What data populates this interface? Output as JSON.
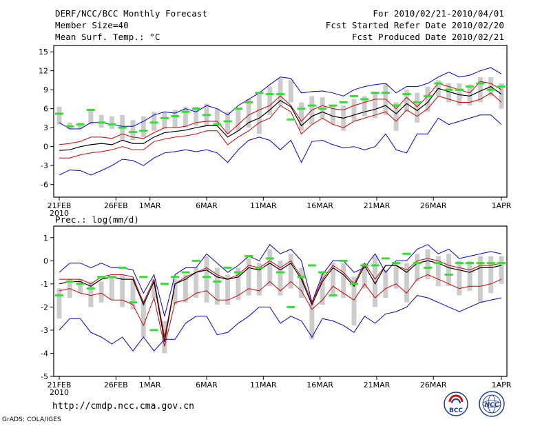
{
  "header": {
    "title": "DERF/NCC/BCC Monthly Forecast",
    "member_size": "Member Size=40",
    "variable": "Mean Surf. Temp.: °C",
    "period": "For 2010/02/21-2010/04/01",
    "started": "Fcst Started Refer Date 2010/02/20",
    "produced": "Fcst Produced Date 2010/02/21"
  },
  "footer": {
    "url": "http://cmdp.ncc.cma.gov.cn",
    "credit": "GrADS: COLA/IGES",
    "logo1_text": "BCC",
    "logo2_text": "NCC"
  },
  "colors": {
    "mean": "#000000",
    "spread": "#cc0000",
    "extreme": "#0000cc",
    "box": "#cccccc",
    "median": "#33dd33"
  },
  "chart_data": [
    {
      "type": "line",
      "title": "Mean Surf. Temp.: °C",
      "x_days": 40,
      "xticks": [
        {
          "day": 1,
          "label": "21FEB"
        },
        {
          "day": 6,
          "label": "26FEB"
        },
        {
          "day": 9,
          "label": "1MAR"
        },
        {
          "day": 14,
          "label": "6MAR"
        },
        {
          "day": 19,
          "label": "11MAR"
        },
        {
          "day": 24,
          "label": "16MAR"
        },
        {
          "day": 29,
          "label": "21MAR"
        },
        {
          "day": 34,
          "label": "26MAR"
        },
        {
          "day": 40,
          "label": "1APR"
        }
      ],
      "year_label": "2010",
      "ylim": [
        -8,
        16
      ],
      "yticks": [
        -6,
        -3,
        0,
        3,
        6,
        9,
        12,
        15
      ],
      "series": [
        {
          "name": "max",
          "values": [
            3.8,
            2.8,
            2.8,
            3.8,
            3.8,
            3.5,
            3.2,
            3.2,
            4.0,
            5.0,
            5.5,
            5.3,
            6.0,
            5.5,
            6.5,
            6.0,
            5.0,
            6.5,
            7.5,
            8.5,
            9.8,
            11.0,
            10.8,
            8.5,
            8.7,
            8.8,
            8.5,
            8.0,
            9.0,
            9.5,
            9.8,
            10.0,
            8.5,
            9.5,
            9.5,
            10.0,
            11.0,
            11.8,
            11.0,
            11.3,
            12.0,
            12.5,
            11.5
          ]
        },
        {
          "name": "upper",
          "values": [
            0.3,
            0.5,
            0.8,
            1.5,
            1.5,
            1.3,
            2.0,
            1.5,
            1.3,
            2.2,
            3.0,
            3.0,
            3.2,
            3.8,
            4.0,
            4.0,
            2.0,
            3.5,
            5.0,
            5.8,
            6.5,
            8.0,
            6.5,
            4.0,
            5.8,
            6.5,
            6.0,
            5.8,
            6.5,
            7.0,
            7.5,
            7.5,
            6.0,
            7.8,
            6.3,
            8.0,
            10.0,
            9.5,
            9.0,
            8.5,
            10.3,
            10.0,
            9.0
          ]
        },
        {
          "name": "mean",
          "values": [
            -0.6,
            -0.5,
            0.0,
            0.3,
            0.5,
            0.3,
            1.0,
            0.5,
            0.5,
            1.5,
            2.2,
            2.4,
            2.6,
            3.0,
            3.3,
            3.3,
            1.5,
            2.5,
            3.8,
            4.5,
            5.8,
            7.3,
            6.3,
            3.3,
            4.8,
            5.5,
            4.8,
            4.5,
            5.0,
            5.5,
            5.9,
            6.5,
            5.2,
            6.8,
            5.7,
            7.0,
            9.2,
            8.7,
            8.2,
            8.0,
            8.8,
            9.5,
            8.3
          ]
        },
        {
          "name": "lower",
          "values": [
            -1.8,
            -1.8,
            -1.3,
            -1.0,
            -0.8,
            -0.5,
            0.0,
            -0.5,
            -0.5,
            0.8,
            1.2,
            1.5,
            1.7,
            2.0,
            2.5,
            2.5,
            0.3,
            1.5,
            2.5,
            3.8,
            4.5,
            6.5,
            5.5,
            2.0,
            3.5,
            4.5,
            3.5,
            3.0,
            4.0,
            4.5,
            5.0,
            5.5,
            4.0,
            5.8,
            4.8,
            6.0,
            8.0,
            7.5,
            7.0,
            7.0,
            7.5,
            8.5,
            7.0
          ]
        },
        {
          "name": "min",
          "values": [
            -4.5,
            -3.7,
            -3.8,
            -4.5,
            -3.8,
            -3.0,
            -2.0,
            -2.2,
            -3.0,
            -1.8,
            -1.0,
            -0.8,
            -0.5,
            -0.8,
            -0.5,
            -1.0,
            -2.5,
            -0.5,
            1.0,
            1.5,
            1.0,
            -0.5,
            1.0,
            -2.5,
            0.8,
            1.0,
            0.3,
            -0.2,
            0.0,
            -0.5,
            0.0,
            2.0,
            -0.5,
            -1.0,
            2.0,
            2.0,
            4.5,
            3.5,
            4.0,
            4.5,
            5.0,
            5.0,
            3.5
          ]
        },
        {
          "name": "box_high",
          "values": [
            6.3,
            3.8,
            3.8,
            6.0,
            5.0,
            4.8,
            5.0,
            4.2,
            4.8,
            5.5,
            5.5,
            5.8,
            6.3,
            6.3,
            6.8,
            6.0,
            5.5,
            6.0,
            7.5,
            8.5,
            9.5,
            10.8,
            10.5,
            7.0,
            8.0,
            7.8,
            6.5,
            6.5,
            7.5,
            8.0,
            8.5,
            10.0,
            7.0,
            9.0,
            8.5,
            9.5,
            10.5,
            10.0,
            10.0,
            9.8,
            11.0,
            11.0,
            10.0
          ]
        },
        {
          "name": "box_low",
          "values": [
            3.5,
            2.8,
            2.8,
            3.5,
            3.0,
            2.8,
            1.0,
            1.0,
            1.5,
            2.5,
            2.8,
            3.0,
            3.0,
            3.3,
            3.3,
            3.3,
            2.0,
            2.5,
            3.0,
            2.0,
            5.0,
            6.5,
            7.0,
            2.5,
            3.5,
            4.5,
            3.5,
            2.5,
            4.0,
            4.8,
            4.5,
            5.0,
            2.5,
            5.5,
            3.8,
            5.5,
            8.0,
            7.0,
            6.5,
            6.5,
            7.0,
            8.0,
            6.0
          ]
        },
        {
          "name": "median",
          "values": [
            5.2,
            3.2,
            3.5,
            5.8,
            3.8,
            3.5,
            3.0,
            2.3,
            2.5,
            3.8,
            4.5,
            4.8,
            5.5,
            6.0,
            5.0,
            3.5,
            4.0,
            6.0,
            7.0,
            8.5,
            8.3,
            8.3,
            4.3,
            6.0,
            6.5,
            6.0,
            6.5,
            7.0,
            8.0,
            7.5,
            8.5,
            8.5,
            6.5,
            8.3,
            7.0,
            8.0,
            10.0,
            9.0,
            9.0,
            9.5,
            10.0,
            9.0,
            9.5
          ]
        }
      ]
    },
    {
      "type": "line",
      "title": "Prec.: log(mm/d)",
      "x_days": 40,
      "xticks": [
        {
          "day": 1,
          "label": "21FEB"
        },
        {
          "day": 6,
          "label": "26FEB"
        },
        {
          "day": 9,
          "label": "1MAR"
        },
        {
          "day": 14,
          "label": "6MAR"
        },
        {
          "day": 19,
          "label": "11MAR"
        },
        {
          "day": 24,
          "label": "16MAR"
        },
        {
          "day": 29,
          "label": "21MAR"
        },
        {
          "day": 34,
          "label": "26MAR"
        },
        {
          "day": 40,
          "label": "1APR"
        }
      ],
      "year_label": "2010",
      "ylim": [
        -5,
        1.5
      ],
      "yticks": [
        -5,
        -4,
        -3,
        -2,
        -1,
        0,
        1
      ],
      "series": [
        {
          "name": "max",
          "values": [
            -0.5,
            -0.1,
            -0.1,
            -0.3,
            -0.1,
            -0.3,
            -0.3,
            -0.4,
            -1.4,
            -0.6,
            -2.4,
            -0.6,
            -0.3,
            -0.3,
            0.3,
            -0.1,
            -0.5,
            -0.2,
            0.2,
            0.0,
            0.7,
            0.3,
            0.5,
            0.0,
            -1.8,
            -0.6,
            0.0,
            0.0,
            -0.5,
            -0.3,
            0.3,
            -0.5,
            0.0,
            0.0,
            0.5,
            0.7,
            0.3,
            0.5,
            0.1,
            0.2,
            0.3,
            0.4,
            0.3
          ]
        },
        {
          "name": "upper",
          "values": [
            -0.8,
            -0.8,
            -0.8,
            -1.0,
            -0.7,
            -0.6,
            -0.6,
            -0.7,
            -1.8,
            -0.8,
            -3.3,
            -1.0,
            -0.7,
            -0.5,
            -0.3,
            -0.6,
            -0.8,
            -0.6,
            -0.2,
            -0.3,
            0.0,
            -0.3,
            0.0,
            -0.7,
            -1.8,
            -0.8,
            -0.2,
            -0.5,
            -1.0,
            -0.1,
            -0.8,
            -0.2,
            -0.2,
            -0.4,
            0.0,
            0.1,
            0.0,
            -0.2,
            -0.3,
            -0.4,
            -0.2,
            -0.2,
            -0.1
          ]
        },
        {
          "name": "mean",
          "values": [
            -1.0,
            -0.9,
            -0.9,
            -1.1,
            -0.8,
            -0.7,
            -0.8,
            -0.8,
            -1.9,
            -0.9,
            -3.5,
            -1.0,
            -0.8,
            -0.5,
            -0.4,
            -0.7,
            -0.8,
            -0.7,
            -0.3,
            -0.4,
            -0.1,
            -0.4,
            -0.1,
            -0.8,
            -1.9,
            -0.9,
            -0.3,
            -0.6,
            -1.1,
            -0.2,
            -1.0,
            -0.2,
            -0.2,
            -0.5,
            -0.1,
            0.0,
            -0.1,
            -0.3,
            -0.4,
            -0.5,
            -0.3,
            -0.3,
            -0.2
          ]
        },
        {
          "name": "lower",
          "values": [
            -1.3,
            -1.2,
            -1.4,
            -1.5,
            -1.4,
            -1.7,
            -1.7,
            -1.9,
            -2.8,
            -1.6,
            -3.7,
            -1.8,
            -1.7,
            -1.4,
            -1.3,
            -1.7,
            -1.7,
            -1.5,
            -1.2,
            -1.3,
            -0.9,
            -1.3,
            -0.9,
            -1.3,
            -2.1,
            -1.7,
            -1.1,
            -1.4,
            -1.7,
            -1.0,
            -1.6,
            -1.2,
            -1.0,
            -1.4,
            -0.8,
            -0.6,
            -0.8,
            -1.0,
            -1.2,
            -1.1,
            -1.1,
            -1.0,
            -0.8
          ]
        },
        {
          "name": "min",
          "values": [
            -3.0,
            -2.5,
            -2.5,
            -3.1,
            -3.3,
            -3.6,
            -3.3,
            -3.9,
            -3.3,
            -3.9,
            -3.4,
            -3.4,
            -2.7,
            -2.4,
            -2.4,
            -3.2,
            -3.1,
            -2.7,
            -2.4,
            -2.0,
            -2.0,
            -2.7,
            -2.4,
            -2.6,
            -3.3,
            -2.5,
            -2.6,
            -2.8,
            -3.1,
            -2.4,
            -2.7,
            -2.3,
            -2.2,
            -2.0,
            -1.5,
            -1.6,
            -1.8,
            -2.0,
            -2.2,
            -2.0,
            -1.8,
            -1.7,
            -1.6
          ]
        },
        {
          "name": "box_high",
          "values": [
            -1.2,
            -0.8,
            -0.8,
            -0.9,
            -0.9,
            -0.7,
            -0.6,
            -0.8,
            -1.7,
            -0.8,
            -2.6,
            -0.8,
            -0.6,
            -0.3,
            0.2,
            -0.3,
            -0.6,
            -0.3,
            0.1,
            -0.1,
            0.5,
            0.0,
            0.3,
            -0.3,
            -1.7,
            -0.5,
            -0.1,
            -0.1,
            -0.7,
            -0.1,
            0.2,
            -0.4,
            -0.1,
            -0.1,
            0.3,
            0.5,
            0.2,
            0.3,
            0.0,
            0.0,
            0.2,
            0.2,
            0.2
          ]
        },
        {
          "name": "box_low",
          "values": [
            -2.5,
            -1.6,
            -1.4,
            -2.0,
            -1.8,
            -1.7,
            -2.0,
            -2.1,
            -3.3,
            -1.6,
            -4.0,
            -1.9,
            -1.8,
            -1.6,
            -1.8,
            -1.9,
            -1.9,
            -1.7,
            -1.5,
            -1.5,
            -1.1,
            -1.5,
            -1.2,
            -1.6,
            -3.4,
            -1.9,
            -1.5,
            -1.6,
            -2.8,
            -1.2,
            -2.0,
            -1.6,
            -1.2,
            -1.8,
            -0.9,
            -0.8,
            -1.1,
            -1.1,
            -1.5,
            -1.3,
            -1.8,
            -1.4,
            -1.0
          ]
        },
        {
          "name": "median",
          "values": [
            -1.5,
            -0.9,
            -1.0,
            -1.2,
            -0.7,
            -0.7,
            -0.3,
            -1.8,
            -0.7,
            -3.0,
            -1.0,
            -0.7,
            -0.5,
            0.0,
            -0.7,
            -0.9,
            -0.3,
            -0.5,
            0.2,
            -0.3,
            0.1,
            -0.5,
            -2.0,
            -0.7,
            -0.2,
            -0.5,
            -1.5,
            0.0,
            -1.0,
            -0.2,
            -0.2,
            0.1,
            -0.1,
            0.3,
            -0.1,
            -0.3,
            -0.1,
            -0.6,
            -0.1,
            -0.1,
            -0.1,
            -0.1,
            -0.1
          ]
        }
      ]
    }
  ]
}
